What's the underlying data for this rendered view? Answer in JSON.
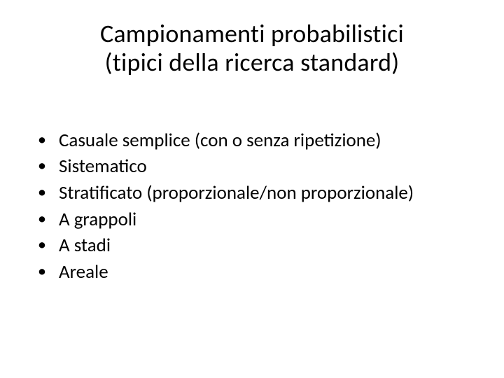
{
  "slide": {
    "title_line1": "Campionamenti probabilistici",
    "title_line2": "(tipici della ricerca standard)",
    "bullets": [
      "Casuale semplice (con o senza ripetizione)",
      "Sistematico",
      "Stratificato (proporzionale/non proporzionale)",
      "A grappoli",
      "A stadi",
      "Areale"
    ],
    "style": {
      "background_color": "#ffffff",
      "text_color": "#000000",
      "title_fontsize_pt": 36,
      "body_fontsize_pt": 27,
      "font_family": "Calibri",
      "title_align": "center",
      "bullet_char": "•"
    }
  }
}
